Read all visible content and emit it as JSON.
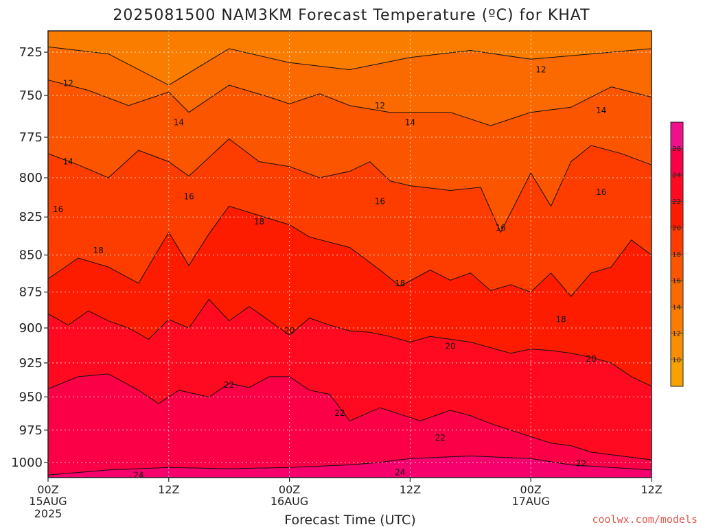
{
  "chart_data": {
    "type": "heatmap",
    "title": "2025081500 NAM3KM Forecast Temperature (ºC) for KHAT",
    "xlabel": "Forecast Time (UTC)",
    "ylabel": "",
    "credit": "coolwx.com/models",
    "x_ticks": [
      {
        "hour": 0,
        "line1": "00Z",
        "line2": "15AUG",
        "line3": "2025"
      },
      {
        "hour": 12,
        "line1": "12Z",
        "line2": "",
        "line3": ""
      },
      {
        "hour": 24,
        "line1": "00Z",
        "line2": "16AUG",
        "line3": ""
      },
      {
        "hour": 36,
        "line1": "12Z",
        "line2": "",
        "line3": ""
      },
      {
        "hour": 48,
        "line1": "00Z",
        "line2": "17AUG",
        "line3": ""
      },
      {
        "hour": 60,
        "line1": "12Z",
        "line2": "",
        "line3": ""
      }
    ],
    "y_ticks": [
      725,
      750,
      775,
      800,
      825,
      850,
      875,
      900,
      925,
      950,
      975,
      1000
    ],
    "xlim": [
      0,
      60
    ],
    "ylim": [
      1012,
      713
    ],
    "y_scale": "log",
    "grid": true,
    "colorbar": {
      "ticks": [
        10,
        12,
        14,
        16,
        18,
        20,
        22,
        24,
        26
      ],
      "range": [
        8,
        28
      ],
      "colors": [
        "#f7a200",
        "#f88f00",
        "#fa7d00",
        "#fb6a00",
        "#fc5500",
        "#fd3c00",
        "#fe1c00",
        "#ff0a20",
        "#fb0046",
        "#f5006c",
        "#f0108c"
      ]
    },
    "ground": {
      "color": "#a0573a",
      "top_pressure": 1012
    },
    "contours": [
      {
        "level": 12,
        "points": [
          [
            0,
            722
          ],
          [
            6,
            726
          ],
          [
            12,
            744
          ],
          [
            18,
            723
          ],
          [
            24,
            731
          ],
          [
            30,
            735
          ],
          [
            36,
            728
          ],
          [
            42,
            724
          ],
          [
            48,
            729
          ],
          [
            54,
            726
          ],
          [
            60,
            723
          ]
        ]
      },
      {
        "level": 14,
        "points": [
          [
            0,
            741
          ],
          [
            4,
            747
          ],
          [
            8,
            756
          ],
          [
            12,
            748
          ],
          [
            14,
            760
          ],
          [
            18,
            744
          ],
          [
            22,
            751
          ],
          [
            24,
            755
          ],
          [
            27,
            749
          ],
          [
            30,
            756
          ],
          [
            34,
            760
          ],
          [
            36,
            760
          ],
          [
            40,
            760
          ],
          [
            44,
            768
          ],
          [
            48,
            760
          ],
          [
            52,
            757
          ],
          [
            56,
            745
          ],
          [
            60,
            751
          ]
        ]
      },
      {
        "level": 16,
        "points": [
          [
            0,
            785
          ],
          [
            3,
            792
          ],
          [
            6,
            800
          ],
          [
            9,
            783
          ],
          [
            12,
            790
          ],
          [
            14,
            799
          ],
          [
            18,
            776
          ],
          [
            21,
            790
          ],
          [
            24,
            793
          ],
          [
            27,
            800
          ],
          [
            30,
            796
          ],
          [
            32,
            790
          ],
          [
            34,
            802
          ],
          [
            36,
            805
          ],
          [
            40,
            808
          ],
          [
            43,
            806
          ],
          [
            45,
            835
          ],
          [
            48,
            797
          ],
          [
            50,
            818
          ],
          [
            52,
            790
          ],
          [
            54,
            780
          ],
          [
            57,
            785
          ],
          [
            60,
            792
          ]
        ]
      },
      {
        "level": 18,
        "points": [
          [
            0,
            866
          ],
          [
            3,
            852
          ],
          [
            6,
            858
          ],
          [
            9,
            869
          ],
          [
            12,
            835
          ],
          [
            14,
            857
          ],
          [
            16,
            836
          ],
          [
            18,
            818
          ],
          [
            21,
            824
          ],
          [
            24,
            830
          ],
          [
            26,
            838
          ],
          [
            30,
            845
          ],
          [
            33,
            860
          ],
          [
            35,
            871
          ],
          [
            38,
            860
          ],
          [
            40,
            867
          ],
          [
            42,
            862
          ],
          [
            44,
            874
          ],
          [
            46,
            870
          ],
          [
            48,
            875
          ],
          [
            50,
            862
          ],
          [
            52,
            878
          ],
          [
            54,
            862
          ],
          [
            56,
            858
          ],
          [
            58,
            840
          ],
          [
            60,
            850
          ]
        ]
      },
      {
        "level": 20,
        "points": [
          [
            0,
            890
          ],
          [
            2,
            898
          ],
          [
            4,
            888
          ],
          [
            6,
            895
          ],
          [
            8,
            900
          ],
          [
            10,
            908
          ],
          [
            12,
            894
          ],
          [
            14,
            900
          ],
          [
            16,
            880
          ],
          [
            18,
            895
          ],
          [
            20,
            885
          ],
          [
            24,
            905
          ],
          [
            26,
            893
          ],
          [
            28,
            898
          ],
          [
            30,
            902
          ],
          [
            32,
            903
          ],
          [
            34,
            906
          ],
          [
            36,
            910
          ],
          [
            38,
            906
          ],
          [
            40,
            908
          ],
          [
            42,
            910
          ],
          [
            44,
            914
          ],
          [
            46,
            918
          ],
          [
            48,
            915
          ],
          [
            50,
            916
          ],
          [
            52,
            918
          ],
          [
            54,
            921
          ],
          [
            56,
            925
          ],
          [
            58,
            935
          ],
          [
            60,
            942
          ]
        ]
      },
      {
        "level": 22,
        "points": [
          [
            0,
            944
          ],
          [
            3,
            935
          ],
          [
            6,
            933
          ],
          [
            9,
            945
          ],
          [
            11,
            955
          ],
          [
            13,
            945
          ],
          [
            16,
            950
          ],
          [
            18,
            940
          ],
          [
            20,
            943
          ],
          [
            22,
            935
          ],
          [
            24,
            935
          ],
          [
            26,
            945
          ],
          [
            28,
            948
          ],
          [
            30,
            968
          ],
          [
            33,
            958
          ],
          [
            35,
            963
          ],
          [
            37,
            968
          ],
          [
            40,
            960
          ],
          [
            42,
            964
          ],
          [
            44,
            970
          ],
          [
            46,
            975
          ],
          [
            48,
            980
          ],
          [
            50,
            985
          ],
          [
            52,
            987
          ],
          [
            54,
            992
          ],
          [
            57,
            995
          ],
          [
            60,
            998
          ]
        ]
      },
      {
        "level": 24,
        "points": [
          [
            0,
            1010
          ],
          [
            6,
            1006
          ],
          [
            12,
            1004
          ],
          [
            18,
            1005
          ],
          [
            24,
            1004
          ],
          [
            30,
            1002
          ],
          [
            33,
            1000
          ],
          [
            36,
            997
          ],
          [
            42,
            995
          ],
          [
            48,
            997
          ],
          [
            52,
            1002
          ],
          [
            56,
            1004
          ],
          [
            60,
            1006
          ]
        ]
      }
    ],
    "contour_labels": [
      {
        "text": "12",
        "hour": 33,
        "p": 756
      },
      {
        "text": "12",
        "hour": 49,
        "p": 735
      },
      {
        "text": "12",
        "hour": 2,
        "p": 743
      },
      {
        "text": "14",
        "hour": 13,
        "p": 766
      },
      {
        "text": "14",
        "hour": 36,
        "p": 766
      },
      {
        "text": "14",
        "hour": 55,
        "p": 759
      },
      {
        "text": "14",
        "hour": 2,
        "p": 790
      },
      {
        "text": "16",
        "hour": 14,
        "p": 812
      },
      {
        "text": "16",
        "hour": 33,
        "p": 815
      },
      {
        "text": "16",
        "hour": 45,
        "p": 832
      },
      {
        "text": "16",
        "hour": 55,
        "p": 809
      },
      {
        "text": "16",
        "hour": 1,
        "p": 820
      },
      {
        "text": "18",
        "hour": 5,
        "p": 847
      },
      {
        "text": "18",
        "hour": 21,
        "p": 828
      },
      {
        "text": "18",
        "hour": 35,
        "p": 869
      },
      {
        "text": "18",
        "hour": 51,
        "p": 894
      },
      {
        "text": "20",
        "hour": 24,
        "p": 902
      },
      {
        "text": "20",
        "hour": 40,
        "p": 913
      },
      {
        "text": "20",
        "hour": 54,
        "p": 922
      },
      {
        "text": "22",
        "hour": 18,
        "p": 941
      },
      {
        "text": "22",
        "hour": 29,
        "p": 962
      },
      {
        "text": "22",
        "hour": 39,
        "p": 981
      },
      {
        "text": "22",
        "hour": 53,
        "p": 1001
      },
      {
        "text": "24",
        "hour": 9,
        "p": 1010
      },
      {
        "text": "24",
        "hour": 35,
        "p": 1008
      }
    ]
  }
}
